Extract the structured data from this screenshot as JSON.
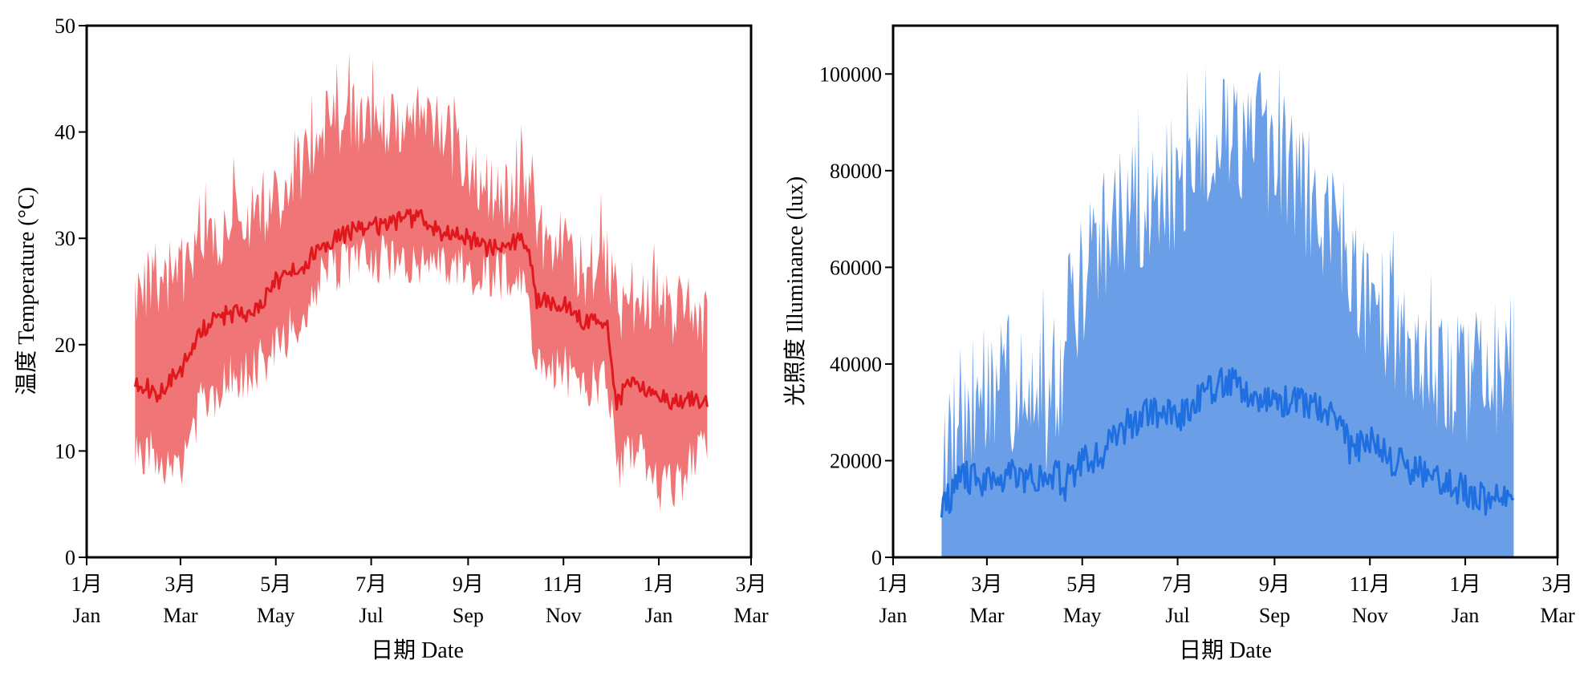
{
  "chart_data": [
    {
      "type": "area",
      "xlabel": "日期 Date",
      "ylabel": "温度 Temperature (°C)",
      "ylim": [
        0,
        50
      ],
      "yticks": [
        0,
        10,
        20,
        30,
        40,
        50
      ],
      "xlim": [
        "2020-01-01",
        "2021-03-01"
      ],
      "xticks": [
        {
          "date": "2020-01-01",
          "cn": "1月",
          "en": "Jan"
        },
        {
          "date": "2020-03-01",
          "cn": "3月",
          "en": "Mar"
        },
        {
          "date": "2020-05-01",
          "cn": "5月",
          "en": "May"
        },
        {
          "date": "2020-07-01",
          "cn": "7月",
          "en": "Jul"
        },
        {
          "date": "2020-09-01",
          "cn": "9月",
          "en": "Sep"
        },
        {
          "date": "2020-11-01",
          "cn": "11月",
          "en": "Nov"
        },
        {
          "date": "2021-01-01",
          "cn": "1月",
          "en": "Jan"
        },
        {
          "date": "2021-03-01",
          "cn": "3月",
          "en": "Mar"
        }
      ],
      "grid": false,
      "colors": {
        "band": "#f07577",
        "line": "#e0181e"
      },
      "x": [
        "2020-02-01",
        "2020-02-15",
        "2020-03-01",
        "2020-03-15",
        "2020-04-01",
        "2020-04-15",
        "2020-05-01",
        "2020-05-15",
        "2020-06-01",
        "2020-06-15",
        "2020-07-01",
        "2020-07-15",
        "2020-08-01",
        "2020-08-15",
        "2020-09-01",
        "2020-09-15",
        "2020-10-01",
        "2020-10-08",
        "2020-10-15",
        "2020-11-01",
        "2020-11-15",
        "2020-11-29",
        "2020-12-05",
        "2020-12-15",
        "2021-01-01",
        "2021-01-15",
        "2021-02-01"
      ],
      "series": [
        {
          "values": [
            16.5,
            15.5,
            17.5,
            21.5,
            23.0,
            22.5,
            26.0,
            27.0,
            29.5,
            30.5,
            31.0,
            31.5,
            32.0,
            30.5,
            30.0,
            29.0,
            29.5,
            30.0,
            24.0,
            24.0,
            22.0,
            22.0,
            14.5,
            17.0,
            15.0,
            14.5,
            15.0
          ]
        },
        {
          "values": [
            28,
            30,
            30,
            32,
            35,
            36,
            37,
            40,
            44,
            45,
            45,
            44,
            46,
            44,
            40,
            38,
            37,
            39,
            34,
            33,
            30,
            32,
            27,
            28,
            27,
            27,
            25
          ]
        },
        {
          "values": [
            8,
            7,
            6,
            12,
            14,
            15,
            17,
            20,
            24,
            25,
            25.5,
            25.5,
            25,
            25,
            24.5,
            24,
            24,
            24,
            15,
            15,
            14,
            14,
            6,
            8,
            4,
            5,
            8
          ]
        }
      ]
    },
    {
      "type": "area",
      "xlabel": "日期 Date",
      "ylabel": "光照度 Illuminance (lux)",
      "ylim": [
        0,
        110000
      ],
      "yticks": [
        0,
        20000,
        40000,
        60000,
        80000,
        100000
      ],
      "xlim": [
        "2020-01-01",
        "2021-03-01"
      ],
      "xticks": [
        {
          "date": "2020-01-01",
          "cn": "1月",
          "en": "Jan"
        },
        {
          "date": "2020-03-01",
          "cn": "3月",
          "en": "Mar"
        },
        {
          "date": "2020-05-01",
          "cn": "5月",
          "en": "May"
        },
        {
          "date": "2020-07-01",
          "cn": "7月",
          "en": "Jul"
        },
        {
          "date": "2020-09-01",
          "cn": "9月",
          "en": "Sep"
        },
        {
          "date": "2020-11-01",
          "cn": "11月",
          "en": "Nov"
        },
        {
          "date": "2021-01-01",
          "cn": "1月",
          "en": "Jan"
        },
        {
          "date": "2021-03-01",
          "cn": "3月",
          "en": "Mar"
        }
      ],
      "grid": false,
      "colors": {
        "band": "#6a9fe8",
        "line": "#1f6fe0"
      },
      "x": [
        "2020-02-01",
        "2020-02-15",
        "2020-03-01",
        "2020-03-15",
        "2020-04-01",
        "2020-04-15",
        "2020-04-20",
        "2020-05-01",
        "2020-05-15",
        "2020-06-01",
        "2020-06-15",
        "2020-07-01",
        "2020-07-15",
        "2020-08-01",
        "2020-08-15",
        "2020-09-01",
        "2020-09-15",
        "2020-10-01",
        "2020-10-10",
        "2020-10-20",
        "2020-11-01",
        "2020-11-15",
        "2020-12-01",
        "2020-12-15",
        "2021-01-01",
        "2021-01-15",
        "2021-02-01"
      ],
      "series": [
        {
          "values": [
            10000,
            17000,
            15000,
            18000,
            16000,
            17000,
            15000,
            20000,
            22000,
            28000,
            30000,
            29000,
            33000,
            37000,
            34000,
            33000,
            32000,
            31000,
            30000,
            22000,
            24000,
            20000,
            18000,
            16000,
            14000,
            12000,
            14000
          ]
        },
        {
          "values": [
            35000,
            45000,
            50000,
            50000,
            48000,
            45000,
            62000,
            72000,
            80000,
            88000,
            90000,
            92000,
            98000,
            100000,
            104000,
            98000,
            95000,
            85000,
            82000,
            75000,
            70000,
            65000,
            58000,
            52000,
            50000,
            52000,
            55000
          ]
        }
      ]
    }
  ]
}
